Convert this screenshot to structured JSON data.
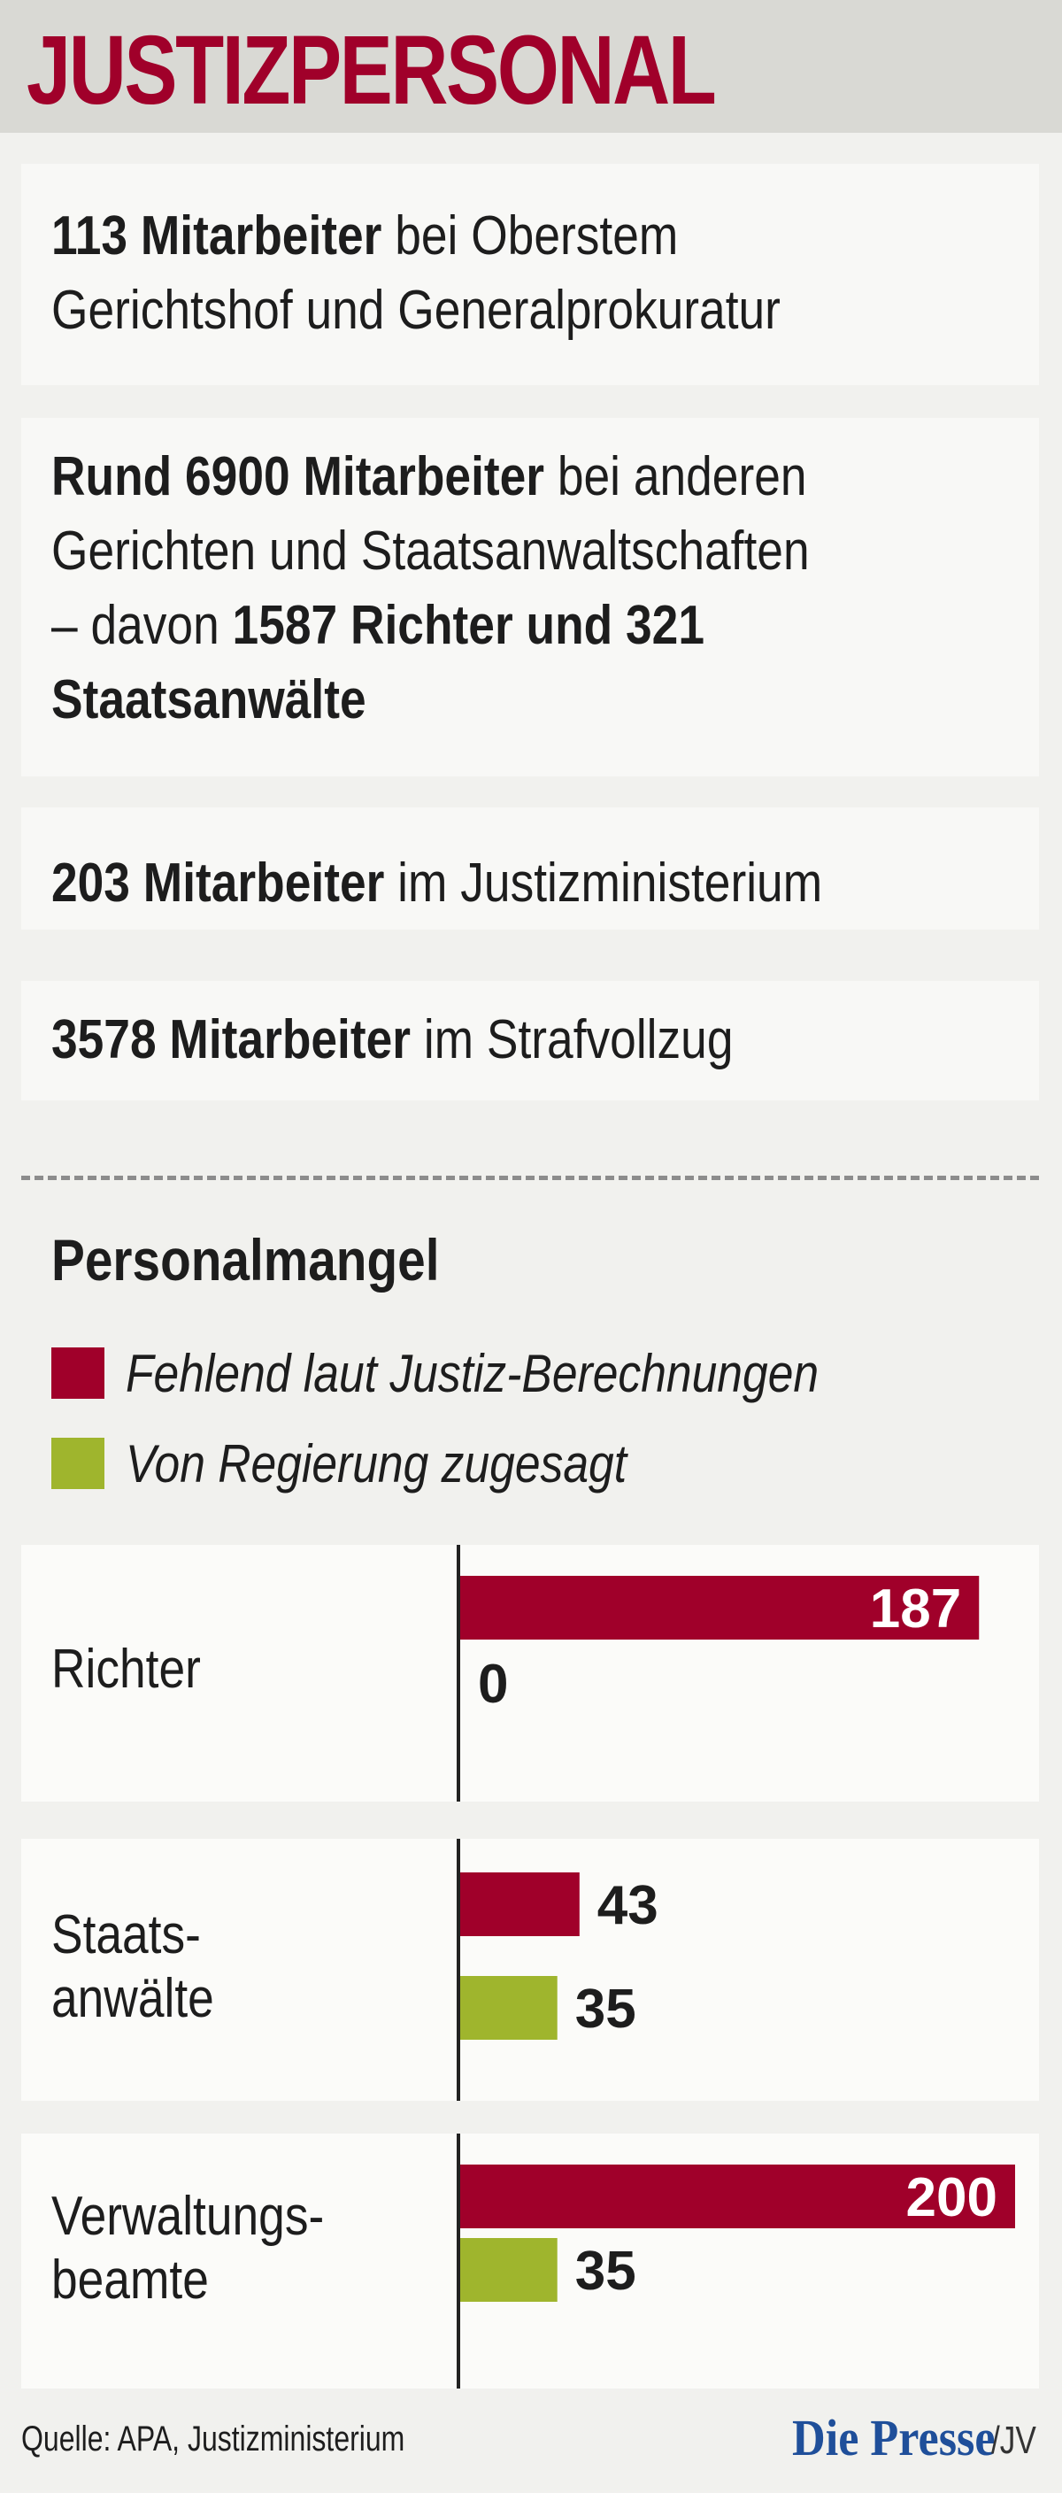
{
  "title": "JUSTIZPERSONAL",
  "facts": [
    {
      "lines": [
        [
          {
            "b": "113 Mitarbeiter"
          },
          {
            "t": " bei Oberstem"
          }
        ],
        [
          {
            "t": "Gerichtshof und Generalprokuratur"
          }
        ]
      ]
    },
    {
      "lines": [
        [
          {
            "b": "Rund 6900 Mitarbeiter"
          },
          {
            "t": " bei anderen"
          }
        ],
        [
          {
            "t": "Gerichten und Staatsanwaltschaften"
          }
        ],
        [
          {
            "t": "– davon "
          },
          {
            "b": "1587 Richter und 321"
          }
        ],
        [
          {
            "b": "Staatsanwälte"
          }
        ]
      ]
    },
    {
      "lines": [
        [
          {
            "b": "203 Mitarbeiter"
          },
          {
            "t": " im Justizministerium"
          }
        ]
      ]
    },
    {
      "lines": [
        [
          {
            "b": "3578 Mitarbeiter"
          },
          {
            "t": " im Strafvollzug"
          }
        ]
      ]
    }
  ],
  "chart_data": {
    "type": "bar",
    "title": "Personalmangel",
    "categories": [
      "Richter",
      "Staats-\nanwälte",
      "Verwaltungs-\nbeamte"
    ],
    "series": [
      {
        "name": "Fehlend laut Justiz-Berechnungen",
        "color": "#a0002a",
        "values": [
          187,
          43,
          200
        ]
      },
      {
        "name": "Von Regierung zugesagt",
        "color": "#9fb52d",
        "values": [
          0,
          35,
          35
        ]
      }
    ],
    "xlim": [
      0,
      200
    ]
  },
  "source": "Quelle: APA, Justizministerium",
  "brand": "Die Presse",
  "author": "/JV"
}
